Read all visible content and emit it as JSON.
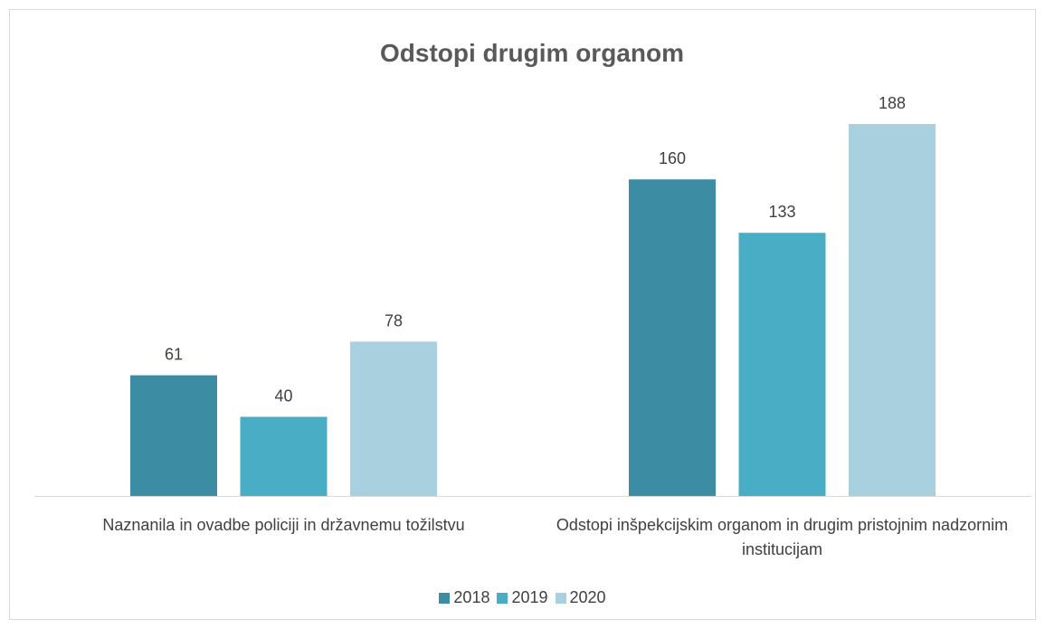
{
  "chart_data": {
    "type": "bar",
    "title": "Odstopi drugim organom",
    "categories": [
      "Naznanila in ovadbe policiji in državnemu tožilstvu",
      "Odstopi inšpekcijskim organom in drugim pristojnim nadzornim institucijam"
    ],
    "series": [
      {
        "name": "2018",
        "color": "#3c8ca3",
        "values": [
          61,
          160
        ]
      },
      {
        "name": "2019",
        "color": "#4aadc6",
        "values": [
          40,
          133
        ]
      },
      {
        "name": "2020",
        "color": "#a8d0de",
        "values": [
          78,
          188
        ]
      }
    ],
    "legend": "bottom",
    "grid": false
  }
}
